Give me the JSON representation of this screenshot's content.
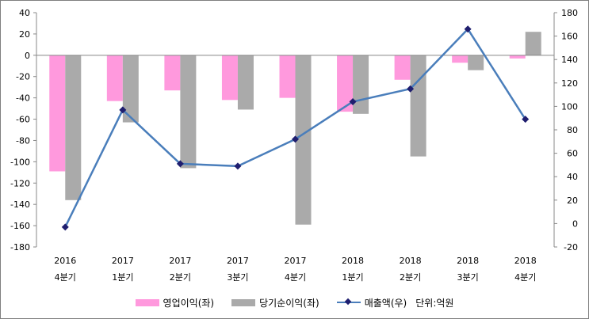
{
  "chart_data": {
    "type": "bar+line",
    "x_year_labels": [
      "2016",
      "2017",
      "2017",
      "2017",
      "2017",
      "2018",
      "2018",
      "2018",
      "2018"
    ],
    "x_quarter_labels": [
      "4분기",
      "1분기",
      "2분기",
      "3분기",
      "4분기",
      "1분기",
      "2분기",
      "3분기",
      "4분기"
    ],
    "series": [
      {
        "name": "영업이익(좌)",
        "type": "bar",
        "axis": "left",
        "color": "#ff99dd",
        "values": [
          -109,
          -43,
          -33,
          -42,
          -40,
          -53,
          -23,
          -7,
          -3
        ]
      },
      {
        "name": "당기순이익(좌)",
        "type": "bar",
        "axis": "left",
        "color": "#aaaaaa",
        "values": [
          -136,
          -63,
          -106,
          -51,
          -159,
          -55,
          -95,
          -14,
          22
        ]
      },
      {
        "name": "매출액(우)",
        "type": "line",
        "axis": "right",
        "color": "#4a7ebb",
        "marker_color": "#1f1e6f",
        "values": [
          -3,
          97,
          51,
          49,
          72,
          104,
          115,
          166,
          89
        ]
      }
    ],
    "left_axis": {
      "min": -180,
      "max": 40,
      "step": 20
    },
    "right_axis": {
      "min": -20,
      "max": 180,
      "step": 20
    },
    "unit_note": "단위:억원",
    "legend_position": "bottom",
    "grid": false
  }
}
